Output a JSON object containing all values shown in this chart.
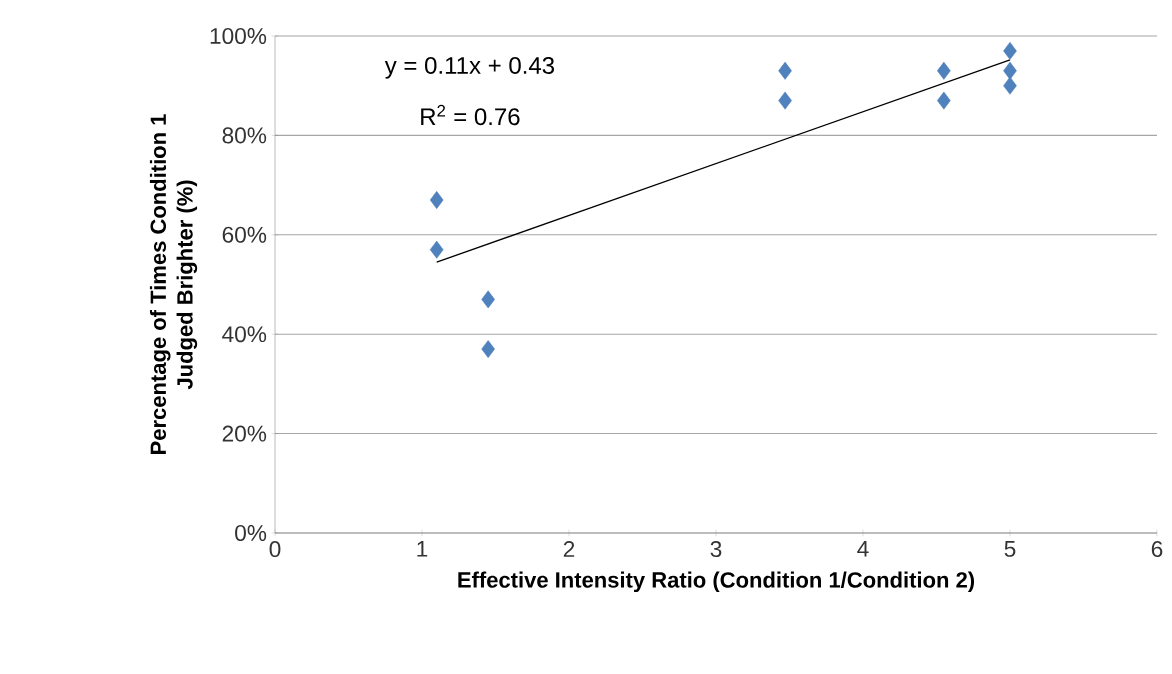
{
  "chart_data": {
    "type": "scatter",
    "xlabel": "Effective Intensity Ratio (Condition 1/Condition 2)",
    "ylabel": "Percentage of Times Condition 1 Judged Brighter (%)",
    "annotations": [
      "y = 0.11x + 0.43",
      "R$^{2}$ = 0.76"
    ],
    "series": [
      {
        "color": "#4f81bd",
        "x": [
          1.1,
          1.1,
          1.45,
          1.45,
          3.47,
          3.47,
          4.55,
          4.55,
          5,
          5,
          5
        ],
        "values": [
          67,
          57,
          47,
          37,
          93,
          87,
          93,
          87,
          97,
          93,
          90
        ]
      },
      {
        "type": "line",
        "color": "#000000",
        "marker": "none",
        "x": [
          1.1,
          5
        ],
        "values": [
          54.5,
          95.2
        ]
      }
    ],
    "marker": "diamond",
    "xlim": [
      0,
      6
    ],
    "xticks": [
      0,
      1,
      2,
      3,
      4,
      5,
      6
    ],
    "ylim": [
      0,
      100
    ],
    "yticks": [
      {
        "value": 0,
        "label": "0%"
      },
      {
        "value": 20,
        "label": "20%"
      },
      {
        "value": 40,
        "label": "40%"
      },
      {
        "value": 60,
        "label": "60%"
      },
      {
        "value": 80,
        "label": "80%"
      },
      {
        "value": 100,
        "label": "100%"
      }
    ],
    "grid": "y"
  }
}
